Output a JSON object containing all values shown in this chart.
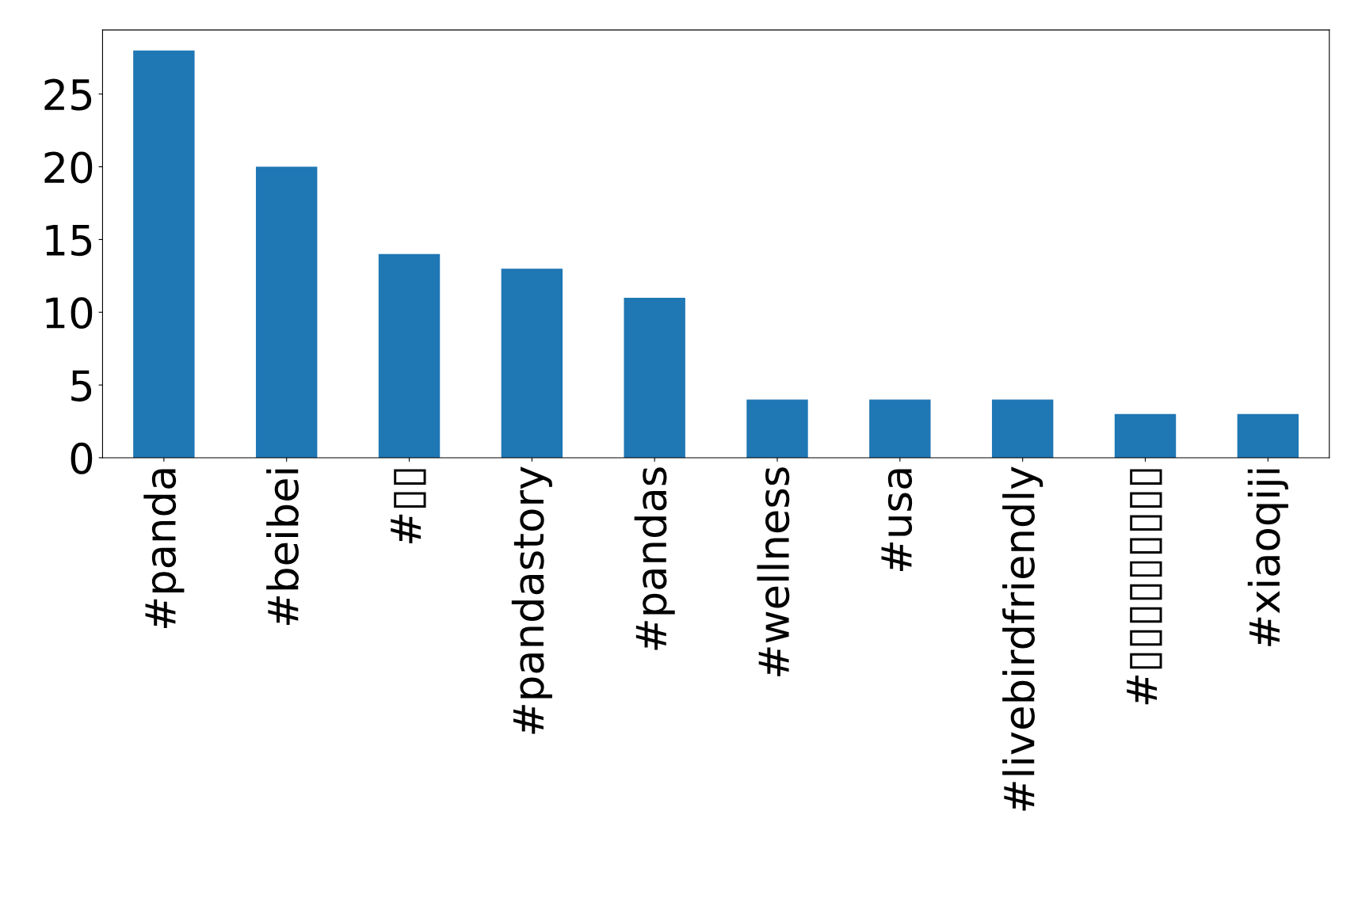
{
  "chart_data": {
    "type": "bar",
    "categories": [
      "#panda",
      "#beibei",
      "#▯▯",
      "#pandastory",
      "#pandas",
      "#wellness",
      "#usa",
      "#livebirdfriendly",
      "#▯▯▯▯▯▯▯▯▯",
      "#xiaoqiji"
    ],
    "values": [
      28,
      20,
      14,
      13,
      11,
      4,
      4,
      4,
      3,
      3
    ],
    "color": "#1f77b4",
    "ylim": [
      0,
      29.4
    ],
    "yticks": [
      0,
      5,
      10,
      15,
      20,
      25
    ],
    "grid": false,
    "legend": false
  }
}
